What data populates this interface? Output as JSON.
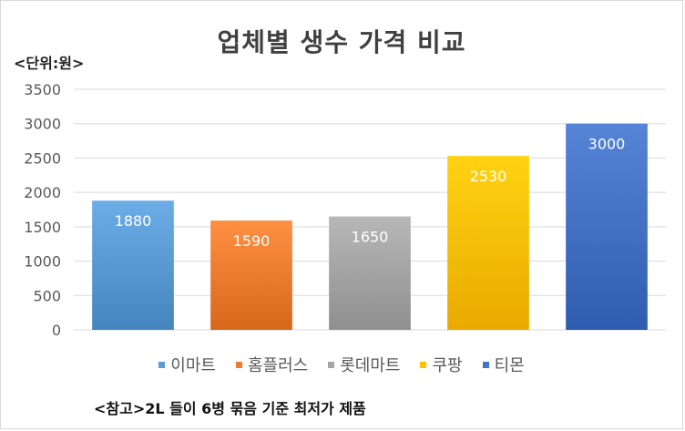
{
  "chart_data": {
    "type": "bar",
    "title": "업체별 생수 가격 비교",
    "unit_label": "<단위:원>",
    "categories": [
      "이마트",
      "홈플러스",
      "롯데마트",
      "쿠팡",
      "티몬"
    ],
    "values": [
      1880,
      1590,
      1650,
      2530,
      3000
    ],
    "bar_colors": [
      "#5b9bd5",
      "#ed7d31",
      "#a5a5a5",
      "#ffc000",
      "#4472c4"
    ],
    "ylim": [
      0,
      3500
    ],
    "y_ticks": [
      0,
      500,
      1000,
      1500,
      2000,
      2500,
      3000,
      3500
    ],
    "grid": true,
    "legend_position": "bottom",
    "data_labels": true,
    "footnote": "<참고>2L 들이 6병 묶음 기준 최저가 제품"
  }
}
